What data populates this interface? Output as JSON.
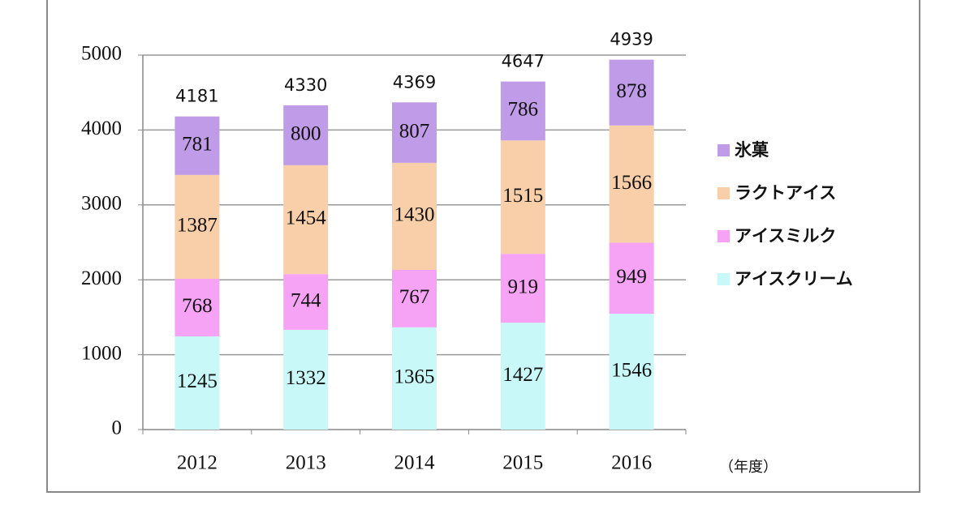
{
  "chart_data": {
    "type": "stacked-bar",
    "categories": [
      "2012",
      "2013",
      "2014",
      "2015",
      "2016"
    ],
    "series": [
      {
        "name": "アイスクリーム",
        "color": "#c8f8f8",
        "values": [
          1245,
          1332,
          1365,
          1427,
          1546
        ]
      },
      {
        "name": "アイスミルク",
        "color": "#f7a3f5",
        "values": [
          768,
          744,
          767,
          919,
          949
        ]
      },
      {
        "name": "ラクトアイス",
        "color": "#f9cfaa",
        "values": [
          1387,
          1454,
          1430,
          1515,
          1566
        ]
      },
      {
        "name": "氷菓",
        "color": "#bf9be8",
        "values": [
          781,
          800,
          807,
          786,
          878
        ]
      }
    ],
    "totals": [
      4181,
      4330,
      4369,
      4647,
      4939
    ],
    "x_label": "（年度）",
    "ylim": [
      0,
      5000
    ],
    "yticks": [
      0,
      1000,
      2000,
      3000,
      4000,
      5000
    ],
    "grid": true,
    "legend": "right"
  }
}
